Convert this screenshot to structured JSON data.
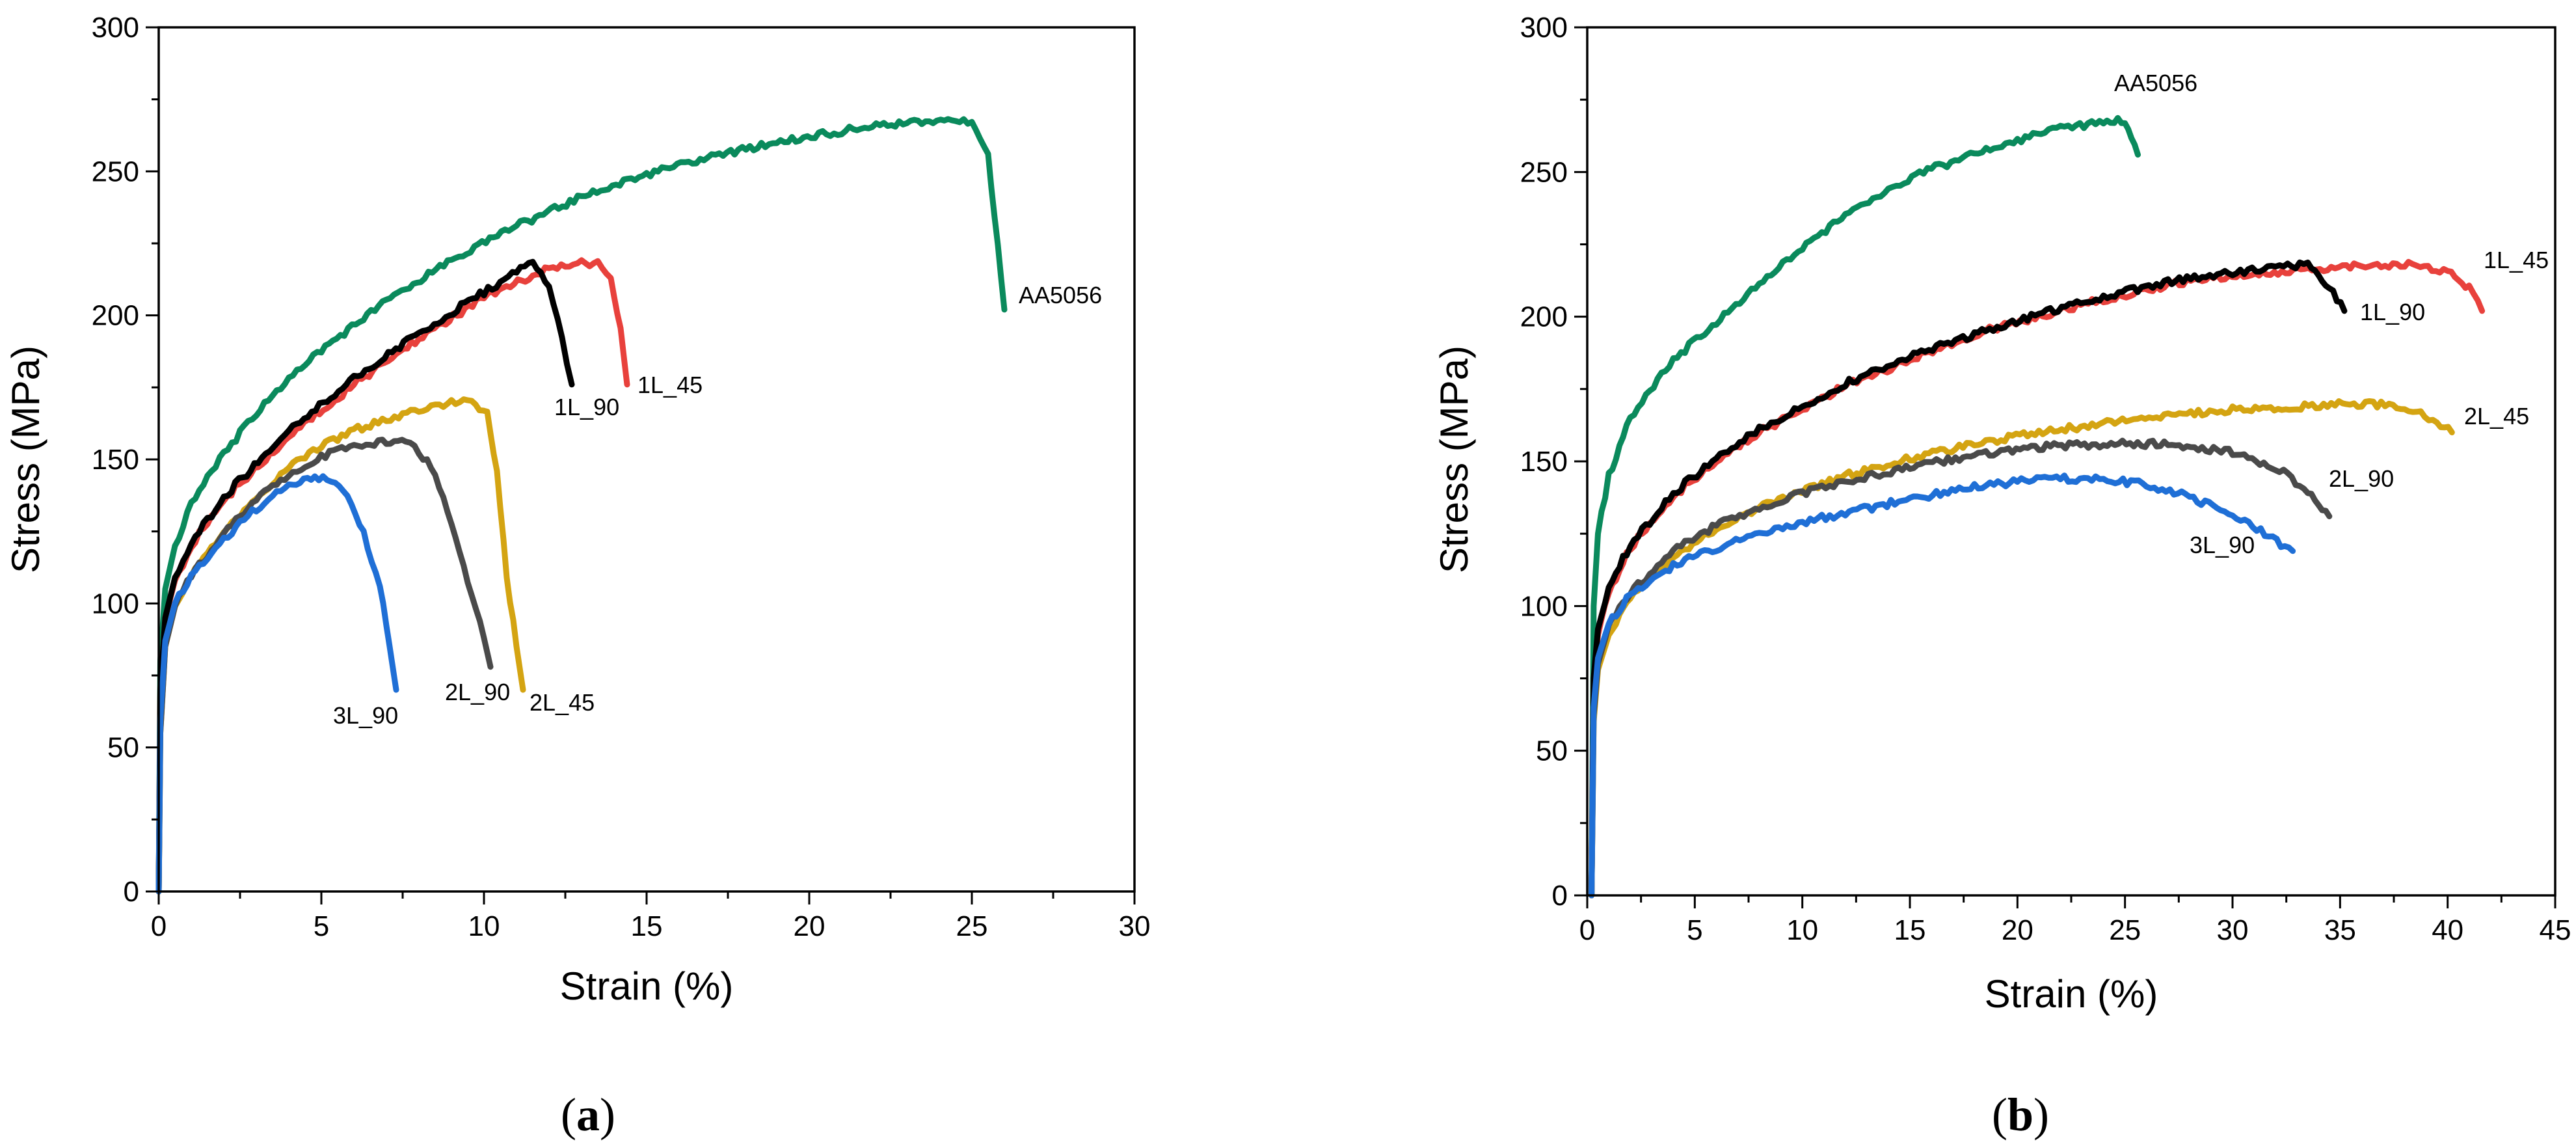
{
  "panels": {
    "a": {
      "label_open": "(",
      "label_letter": "a",
      "label_close": ")"
    },
    "b": {
      "label_open": "(",
      "label_letter": "b",
      "label_close": ")"
    }
  },
  "chart_data": [
    {
      "id": "a",
      "type": "line",
      "title": "",
      "xlabel": "Strain (%)",
      "ylabel": "Stress (MPa)",
      "xlim": [
        0,
        30
      ],
      "ylim": [
        0,
        300
      ],
      "xticks": [
        0,
        5,
        10,
        15,
        20,
        25,
        30
      ],
      "yticks": [
        0,
        50,
        100,
        150,
        200,
        250,
        300
      ],
      "grid": false,
      "series": [
        {
          "name": "AA5056",
          "color": "#0a8a5c",
          "x": [
            0,
            0.05,
            0.2,
            0.5,
            1,
            2,
            3,
            4,
            5,
            7,
            9,
            11,
            13,
            15,
            17,
            19,
            21,
            23,
            24.5,
            25,
            25.5,
            25.8,
            26
          ],
          "y": [
            0,
            80,
            105,
            120,
            135,
            152,
            166,
            178,
            188,
            205,
            219,
            231,
            241,
            249,
            255,
            260,
            264,
            267,
            268,
            267,
            255,
            225,
            202
          ]
        },
        {
          "name": "1L_45",
          "color": "#e8413c",
          "x": [
            0,
            0.05,
            0.2,
            0.5,
            1,
            2,
            4,
            6,
            8,
            10,
            11.5,
            12.5,
            13.5,
            13.9,
            14.2,
            14.4
          ],
          "y": [
            0,
            70,
            95,
            108,
            120,
            136,
            158,
            176,
            192,
            206,
            214,
            218,
            218,
            214,
            195,
            176
          ]
        },
        {
          "name": "1L_90",
          "color": "#000000",
          "x": [
            0,
            0.05,
            0.2,
            0.5,
            1,
            2,
            4,
            6,
            8,
            10,
            11,
            11.5,
            12,
            12.4,
            12.7
          ],
          "y": [
            0,
            70,
            95,
            109,
            121,
            137,
            160,
            178,
            194,
            208,
            215,
            218,
            210,
            192,
            176
          ]
        },
        {
          "name": "2L_45",
          "color": "#d4a412",
          "x": [
            0,
            0.05,
            0.2,
            0.5,
            1,
            2,
            3,
            4,
            5,
            6,
            7,
            8,
            9,
            9.5,
            10.1,
            10.4,
            10.7,
            11,
            11.2
          ],
          "y": [
            0,
            55,
            85,
            99,
            110,
            125,
            137,
            147,
            155,
            160,
            164,
            167,
            170,
            170,
            166,
            145,
            110,
            85,
            70
          ]
        },
        {
          "name": "2L_90",
          "color": "#4a4a4a",
          "x": [
            0,
            0.05,
            0.2,
            0.5,
            1,
            2,
            3,
            4,
            5,
            6,
            7,
            7.6,
            8,
            8.5,
            9,
            9.5,
            10,
            10.2
          ],
          "y": [
            0,
            55,
            85,
            99,
            110,
            124,
            136,
            145,
            151,
            155,
            156,
            156,
            153,
            145,
            128,
            108,
            88,
            78
          ]
        },
        {
          "name": "3L_90",
          "color": "#1f6fd6",
          "x": [
            0,
            0.05,
            0.2,
            0.5,
            1,
            2,
            3,
            4,
            4.8,
            5.3,
            5.8,
            6.3,
            6.8,
            7.1,
            7.3
          ],
          "y": [
            0,
            60,
            87,
            100,
            110,
            122,
            133,
            141,
            144,
            143,
            137,
            124,
            106,
            85,
            70
          ]
        }
      ],
      "annotations": [
        "AA5056",
        "1L_45",
        "1L_90",
        "2L_45",
        "2L_90",
        "3L_90"
      ]
    },
    {
      "id": "b",
      "type": "line",
      "title": "",
      "xlabel": "Strain (%)",
      "ylabel": "Stress (MPa)",
      "xlim": [
        0,
        45
      ],
      "ylim": [
        0,
        300
      ],
      "xticks": [
        0,
        5,
        10,
        15,
        20,
        25,
        30,
        35,
        40,
        45
      ],
      "yticks": [
        0,
        50,
        100,
        150,
        200,
        250,
        300
      ],
      "grid": false,
      "series": [
        {
          "name": "AA5056",
          "color": "#0a8a5c",
          "x": [
            0.2,
            0.3,
            0.5,
            1,
            2,
            4,
            6,
            8,
            10,
            12,
            14,
            16,
            18,
            20,
            22,
            24,
            25,
            25.3,
            25.6
          ],
          "y": [
            0,
            100,
            125,
            145,
            165,
            185,
            198,
            211,
            224,
            235,
            244,
            251,
            256,
            261,
            265,
            267,
            268,
            262,
            256
          ]
        },
        {
          "name": "1L_45",
          "color": "#e8413c",
          "x": [
            0.2,
            0.3,
            0.5,
            1,
            2,
            4,
            6,
            8,
            10,
            12,
            15,
            18,
            21,
            24,
            27,
            30,
            33,
            36,
            38,
            40,
            41,
            41.6
          ],
          "y": [
            0,
            75,
            90,
            105,
            120,
            138,
            150,
            160,
            168,
            176,
            185,
            194,
            200,
            206,
            211,
            214,
            216,
            218,
            218,
            216,
            210,
            202
          ]
        },
        {
          "name": "1L_90",
          "color": "#000000",
          "x": [
            0.2,
            0.3,
            0.5,
            1,
            2,
            4,
            6,
            8,
            10,
            12,
            15,
            18,
            21,
            24,
            27,
            30,
            32,
            33.5,
            34.5,
            35.2
          ],
          "y": [
            0,
            75,
            92,
            107,
            121,
            139,
            151,
            161,
            169,
            177,
            186,
            194,
            201,
            207,
            212,
            215,
            217,
            218,
            210,
            202
          ]
        },
        {
          "name": "2L_45",
          "color": "#d4a412",
          "x": [
            0.2,
            0.3,
            0.5,
            1,
            2,
            4,
            6,
            8,
            10,
            12,
            15,
            18,
            21,
            24,
            27,
            30,
            33,
            36,
            38,
            39.5,
            40.2
          ],
          "y": [
            0,
            60,
            78,
            90,
            103,
            117,
            127,
            134,
            140,
            145,
            151,
            156,
            160,
            163,
            166,
            168,
            169,
            170,
            169,
            164,
            160
          ]
        },
        {
          "name": "2L_90",
          "color": "#4a4a4a",
          "x": [
            0.2,
            0.3,
            0.5,
            1,
            2,
            4,
            6,
            8,
            10,
            12,
            15,
            18,
            21,
            24,
            27,
            30,
            32,
            33.5,
            34.5
          ],
          "y": [
            0,
            62,
            80,
            93,
            105,
            119,
            128,
            134,
            139,
            143,
            148,
            152,
            155,
            156,
            156,
            153,
            148,
            140,
            131
          ]
        },
        {
          "name": "3L_90",
          "color": "#1f6fd6",
          "x": [
            0.2,
            0.3,
            0.5,
            1,
            2,
            4,
            6,
            8,
            10,
            12,
            15,
            18,
            20,
            22,
            24,
            26,
            28,
            30,
            31.5,
            32.8
          ],
          "y": [
            0,
            65,
            82,
            94,
            104,
            114,
            120,
            125,
            129,
            132,
            137,
            141,
            143,
            144,
            144,
            142,
            138,
            131,
            125,
            119
          ]
        }
      ],
      "annotations": [
        "AA5056",
        "1L_45",
        "1L_90",
        "2L_45",
        "2L_90",
        "3L_90"
      ]
    }
  ]
}
